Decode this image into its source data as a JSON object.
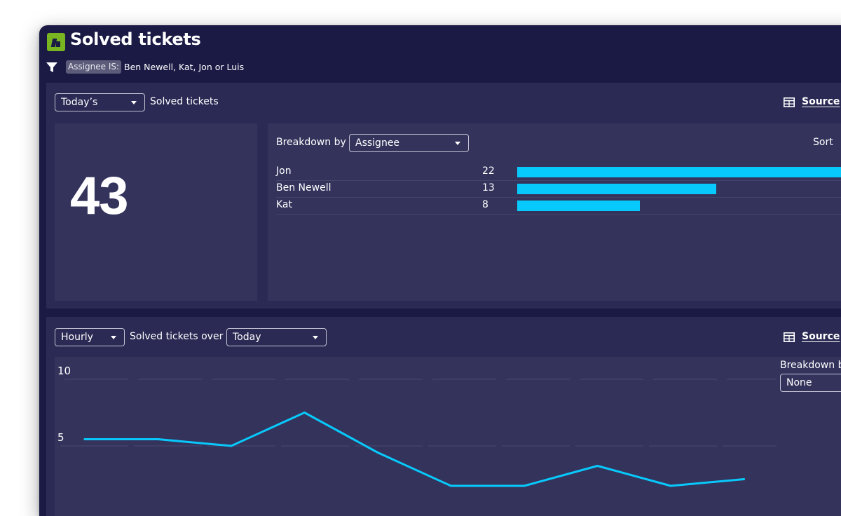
{
  "header": {
    "title": "Solved tickets",
    "filter": {
      "tag": "Assignee IS:",
      "value": "Ben Newell, Kat, Jon or Luis"
    }
  },
  "summary_panel": {
    "period_dropdown": "Today’s",
    "label": "Solved tickets",
    "source_label": "Source",
    "total": "43",
    "breakdown": {
      "label": "Breakdown by",
      "dropdown": "Assignee",
      "sort_label": "Sort",
      "max_value": 22,
      "rows": [
        {
          "name": "Jon",
          "value": 22
        },
        {
          "name": "Ben Newell",
          "value": 13
        },
        {
          "name": "Kat",
          "value": 8
        }
      ]
    }
  },
  "trend_panel": {
    "interval_dropdown": "Hourly",
    "label": "Solved tickets over",
    "range_dropdown": "Today",
    "source_label": "Source",
    "breakdown_label": "Breakdown b",
    "breakdown_dropdown": "None"
  },
  "chart_data": {
    "type": "line",
    "title": "",
    "xlabel": "",
    "ylabel": "",
    "y_ticks": [
      10,
      5
    ],
    "ylim": [
      0,
      10
    ],
    "grid": true,
    "series": [
      {
        "values": [
          5.5,
          5.5,
          5.0,
          7.5,
          4.5,
          2.0,
          2.0,
          3.5,
          2.0,
          2.5
        ]
      }
    ]
  },
  "colors": {
    "background": "#1b1a45",
    "panel": "#2a2a54",
    "subpanel": "#33335c",
    "accent": "#08c9fb",
    "logo": "#78b521"
  },
  "icons": {
    "logo": "app-logo-icon",
    "filter": "filter-icon",
    "source": "table-icon",
    "dropdown": "caret-down-icon"
  }
}
